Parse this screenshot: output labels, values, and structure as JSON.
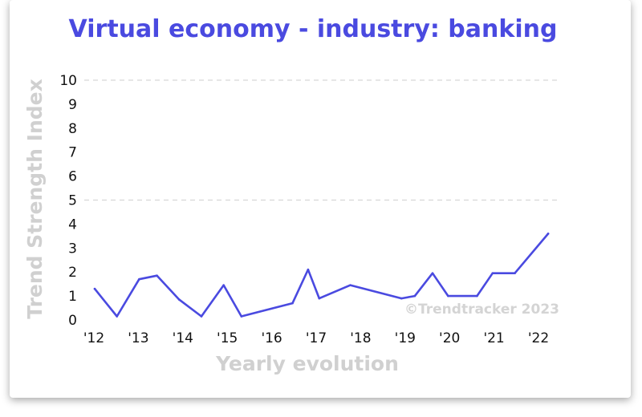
{
  "chart_data": {
    "type": "line",
    "title": "Virtual economy - industry: banking",
    "xlabel": "Yearly evolution",
    "ylabel": "Trend Strength Index",
    "watermark": "©Trendtracker 2023",
    "ylim": [
      0,
      10
    ],
    "yticks": [
      "0",
      "1",
      "2",
      "3",
      "4",
      "5",
      "6",
      "7",
      "8",
      "9",
      "10"
    ],
    "xticks": [
      "'12",
      "'13",
      "'14",
      "'15",
      "'16",
      "'17",
      "'18",
      "'19",
      "'20",
      "'21",
      "'22"
    ],
    "xlim": [
      2012,
      2022.3
    ],
    "grid": "horizontal dashed",
    "series": [
      {
        "color": "#4a4ae0",
        "points": [
          {
            "x": 2012.0,
            "y": 1.3
          },
          {
            "x": 2012.5,
            "y": 0.15
          },
          {
            "x": 2013.0,
            "y": 1.7
          },
          {
            "x": 2013.4,
            "y": 1.85
          },
          {
            "x": 2013.9,
            "y": 0.85
          },
          {
            "x": 2014.4,
            "y": 0.15
          },
          {
            "x": 2014.9,
            "y": 1.45
          },
          {
            "x": 2015.3,
            "y": 0.15
          },
          {
            "x": 2016.45,
            "y": 0.7
          },
          {
            "x": 2016.8,
            "y": 2.1
          },
          {
            "x": 2017.05,
            "y": 0.9
          },
          {
            "x": 2017.75,
            "y": 1.45
          },
          {
            "x": 2018.9,
            "y": 0.9
          },
          {
            "x": 2019.2,
            "y": 1.0
          },
          {
            "x": 2019.6,
            "y": 1.95
          },
          {
            "x": 2019.95,
            "y": 1.0
          },
          {
            "x": 2020.6,
            "y": 1.0
          },
          {
            "x": 2020.95,
            "y": 1.95
          },
          {
            "x": 2021.45,
            "y": 1.95
          },
          {
            "x": 2022.2,
            "y": 3.6
          }
        ]
      }
    ]
  }
}
